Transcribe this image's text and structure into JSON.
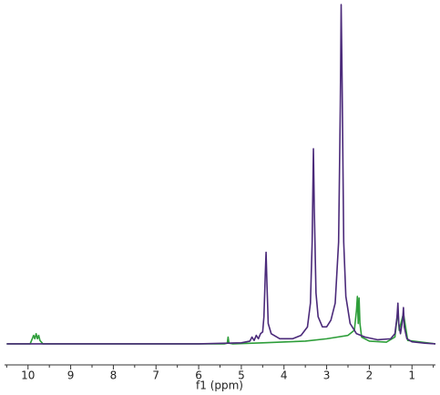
{
  "chart_data": {
    "type": "line",
    "x_label": "f1 (ppm)",
    "xlim": [
      10.55,
      0.45
    ],
    "ylim": [
      -6.2,
      100
    ],
    "xticks": [
      10,
      9,
      8,
      7,
      6,
      5,
      4,
      3,
      2,
      1
    ],
    "xminorticks": [
      10.5,
      9.5,
      8.5,
      7.5,
      6.5,
      5.5,
      4.5,
      3.5,
      2.5,
      1.5,
      0.5
    ],
    "series": [
      {
        "color": "#2e9e3a",
        "x": [
          10.5,
          9.95,
          9.9,
          9.87,
          9.84,
          9.81,
          9.78,
          9.75,
          9.72,
          9.65,
          5.4,
          5.33,
          5.31,
          5.29,
          5.2,
          4.5,
          3.5,
          3.0,
          2.5,
          2.35,
          2.3,
          2.28,
          2.26,
          2.24,
          2.22,
          2.18,
          2.0,
          1.6,
          1.4,
          1.33,
          1.3,
          1.2,
          1.1,
          0.45
        ],
        "values": [
          0,
          0,
          1.5,
          2.5,
          1.5,
          3,
          1.5,
          2.5,
          1,
          0,
          0,
          0.2,
          2,
          0.2,
          0,
          0.3,
          0.8,
          1.5,
          2.5,
          4,
          10,
          14,
          6,
          13.5,
          6,
          2,
          0.8,
          0.5,
          2,
          10,
          4,
          9,
          1,
          0
        ]
      },
      {
        "color": "#4b2a7a",
        "x": [
          10.5,
          6.0,
          5.0,
          4.8,
          4.75,
          4.7,
          4.65,
          4.6,
          4.55,
          4.5,
          4.47,
          4.44,
          4.42,
          4.4,
          4.37,
          4.3,
          4.1,
          3.8,
          3.6,
          3.45,
          3.38,
          3.34,
          3.31,
          3.29,
          3.25,
          3.2,
          3.1,
          3.0,
          2.9,
          2.8,
          2.72,
          2.68,
          2.66,
          2.64,
          2.6,
          2.55,
          2.45,
          2.3,
          2.1,
          1.8,
          1.5,
          1.4,
          1.35,
          1.33,
          1.31,
          1.27,
          1.22,
          1.2,
          1.18,
          1.12,
          1.0,
          0.7,
          0.45
        ],
        "values": [
          0,
          0,
          0.3,
          0.8,
          2,
          1,
          2.5,
          1.5,
          3,
          3.5,
          8,
          20,
          27,
          18,
          6,
          3,
          1.5,
          1.5,
          2.5,
          5,
          12,
          30,
          57.5,
          40,
          15,
          8,
          5,
          5,
          7,
          12,
          30,
          70,
          100,
          80,
          30,
          14,
          6,
          3,
          2,
          1.2,
          1.5,
          3,
          8,
          12,
          6,
          3,
          7,
          10.7,
          5,
          1.5,
          0.6,
          0.2,
          0
        ]
      }
    ]
  }
}
